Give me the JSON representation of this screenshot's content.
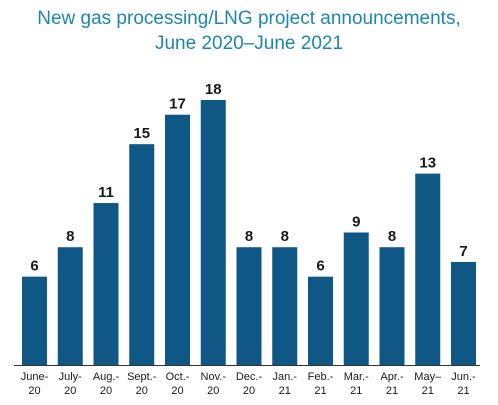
{
  "chart_data": {
    "type": "bar",
    "title_lines": [
      "New gas processing/LNG project announcements,",
      "June 2020–June 2021"
    ],
    "categories": [
      [
        "June-",
        "20"
      ],
      [
        "July-",
        "20"
      ],
      [
        "Aug.-",
        "20"
      ],
      [
        "Sept.-",
        "20"
      ],
      [
        "Oct.-",
        "20"
      ],
      [
        "Nov.-",
        "20"
      ],
      [
        "Dec.-",
        "20"
      ],
      [
        "Jan.-",
        "21"
      ],
      [
        "Feb.-",
        "21"
      ],
      [
        "Mar.-",
        "21"
      ],
      [
        "Apr.-",
        "21"
      ],
      [
        "May–",
        "21"
      ],
      [
        "Jun.-",
        "21"
      ]
    ],
    "values": [
      6,
      8,
      11,
      15,
      17,
      18,
      8,
      8,
      6,
      9,
      8,
      13,
      7
    ],
    "ylim": [
      0,
      18
    ],
    "xlabel": "",
    "ylabel": "",
    "grid": false,
    "bar_color": "#0f5785",
    "title_color": "#1e86ad"
  }
}
